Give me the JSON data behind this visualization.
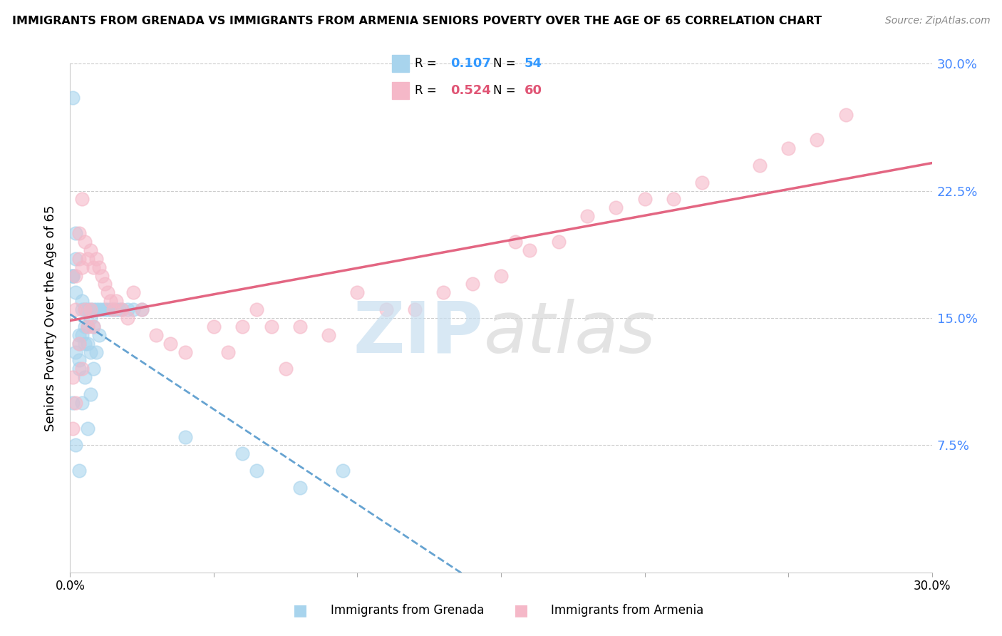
{
  "title": "IMMIGRANTS FROM GRENADA VS IMMIGRANTS FROM ARMENIA SENIORS POVERTY OVER THE AGE OF 65 CORRELATION CHART",
  "source": "Source: ZipAtlas.com",
  "ylabel": "Seniors Poverty Over the Age of 65",
  "xlim": [
    0.0,
    0.3
  ],
  "ylim": [
    0.0,
    0.3
  ],
  "grenada_R": 0.107,
  "grenada_N": 54,
  "armenia_R": 0.524,
  "armenia_N": 60,
  "grenada_color": "#a8d4ed",
  "armenia_color": "#f5b8c8",
  "grenada_line_color": "#5599cc",
  "armenia_line_color": "#e05575",
  "grenada_x": [
    0.001,
    0.001,
    0.001,
    0.001,
    0.001,
    0.002,
    0.002,
    0.002,
    0.002,
    0.002,
    0.003,
    0.003,
    0.003,
    0.003,
    0.003,
    0.004,
    0.004,
    0.004,
    0.004,
    0.005,
    0.005,
    0.005,
    0.005,
    0.006,
    0.006,
    0.006,
    0.006,
    0.007,
    0.007,
    0.007,
    0.007,
    0.008,
    0.008,
    0.008,
    0.009,
    0.009,
    0.01,
    0.01,
    0.011,
    0.012,
    0.013,
    0.014,
    0.015,
    0.016,
    0.017,
    0.018,
    0.02,
    0.022,
    0.025,
    0.04,
    0.06,
    0.065,
    0.08,
    0.095
  ],
  "grenada_y": [
    0.28,
    0.175,
    0.175,
    0.175,
    0.1,
    0.2,
    0.185,
    0.165,
    0.13,
    0.075,
    0.14,
    0.135,
    0.125,
    0.12,
    0.06,
    0.16,
    0.155,
    0.14,
    0.1,
    0.155,
    0.145,
    0.135,
    0.115,
    0.155,
    0.145,
    0.135,
    0.085,
    0.155,
    0.15,
    0.13,
    0.105,
    0.155,
    0.145,
    0.12,
    0.155,
    0.13,
    0.155,
    0.14,
    0.155,
    0.155,
    0.155,
    0.155,
    0.155,
    0.155,
    0.155,
    0.155,
    0.155,
    0.155,
    0.155,
    0.08,
    0.07,
    0.06,
    0.05,
    0.06
  ],
  "armenia_x": [
    0.001,
    0.001,
    0.002,
    0.002,
    0.002,
    0.003,
    0.003,
    0.003,
    0.004,
    0.004,
    0.004,
    0.005,
    0.005,
    0.006,
    0.006,
    0.007,
    0.007,
    0.008,
    0.008,
    0.009,
    0.01,
    0.011,
    0.012,
    0.013,
    0.014,
    0.015,
    0.016,
    0.018,
    0.02,
    0.022,
    0.025,
    0.03,
    0.035,
    0.04,
    0.05,
    0.055,
    0.06,
    0.065,
    0.07,
    0.075,
    0.08,
    0.09,
    0.1,
    0.11,
    0.12,
    0.13,
    0.14,
    0.15,
    0.155,
    0.16,
    0.17,
    0.18,
    0.19,
    0.2,
    0.21,
    0.22,
    0.24,
    0.25,
    0.26,
    0.27
  ],
  "armenia_y": [
    0.115,
    0.085,
    0.175,
    0.155,
    0.1,
    0.2,
    0.185,
    0.135,
    0.22,
    0.18,
    0.12,
    0.195,
    0.155,
    0.185,
    0.145,
    0.19,
    0.155,
    0.18,
    0.145,
    0.185,
    0.18,
    0.175,
    0.17,
    0.165,
    0.16,
    0.155,
    0.16,
    0.155,
    0.15,
    0.165,
    0.155,
    0.14,
    0.135,
    0.13,
    0.145,
    0.13,
    0.145,
    0.155,
    0.145,
    0.12,
    0.145,
    0.14,
    0.165,
    0.155,
    0.155,
    0.165,
    0.17,
    0.175,
    0.195,
    0.19,
    0.195,
    0.21,
    0.215,
    0.22,
    0.22,
    0.23,
    0.24,
    0.25,
    0.255,
    0.27
  ]
}
